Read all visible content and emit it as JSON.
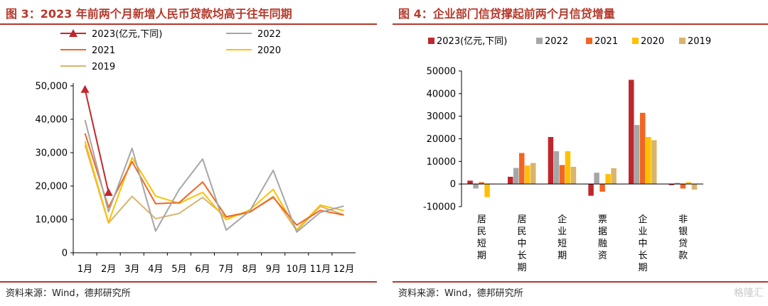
{
  "left": {
    "title": "图 3：2023 年前两个月新增人民币贷款均高于往年同期",
    "source": "资料来源：Wind，德邦研究所"
  },
  "right": {
    "title": "图 4：企业部门信贷撑起前两个月信贷增量",
    "source": "资料来源：Wind，德邦研究所"
  },
  "watermark": "格隆汇",
  "colors": {
    "accent": "#b5392b",
    "s2023": "#c0272d",
    "s2022": "#a6a6a6",
    "s2021": "#f26522",
    "s2020": "#ffc000",
    "s2019": "#d9b46c"
  },
  "chart_data": [
    {
      "type": "line",
      "categories": [
        "1月",
        "2月",
        "3月",
        "4月",
        "5月",
        "6月",
        "7月",
        "8月",
        "9月",
        "10月",
        "11月",
        "12月"
      ],
      "ylim": [
        0,
        50000
      ],
      "yticks": [
        "0",
        "10,000",
        "20,000",
        "30,000",
        "40,000",
        "50,000"
      ],
      "grid": false,
      "legend": "top",
      "series": [
        {
          "name": "2023(亿元,下同)",
          "color": "#c0272d",
          "marker": "triangle",
          "values": [
            49000,
            18100,
            null,
            null,
            null,
            null,
            null,
            null,
            null,
            null,
            null,
            null
          ]
        },
        {
          "name": "2022",
          "color": "#a6a6a6",
          "values": [
            39800,
            12300,
            31300,
            6500,
            18900,
            28100,
            6800,
            12500,
            24700,
            6200,
            12100,
            14000
          ]
        },
        {
          "name": "2021",
          "color": "#f26522",
          "values": [
            35800,
            13600,
            27300,
            14700,
            15000,
            21200,
            10800,
            12200,
            16600,
            8300,
            12700,
            11300
          ]
        },
        {
          "name": "2020",
          "color": "#ffc000",
          "values": [
            33400,
            9100,
            28500,
            17000,
            14800,
            18100,
            9900,
            12800,
            19000,
            6900,
            14300,
            12600
          ]
        },
        {
          "name": "2019",
          "color": "#d9b46c",
          "values": [
            32300,
            8900,
            16900,
            10200,
            11800,
            16600,
            10600,
            12100,
            16900,
            6600,
            13900,
            11400
          ]
        }
      ]
    },
    {
      "type": "bar",
      "categories": [
        "居民短期",
        "居民中长期",
        "企业短期",
        "票据融资",
        "企业中长期",
        "非银贷款"
      ],
      "ylim": [
        -10000,
        50000
      ],
      "yticks": [
        "-10000",
        "0",
        "10000",
        "20000",
        "30000",
        "40000",
        "50000"
      ],
      "grid": false,
      "legend": "top",
      "series": [
        {
          "name": "2023(亿元,下同)",
          "color": "#c0272d",
          "values": [
            1500,
            3200,
            20800,
            -5200,
            46100,
            -500
          ]
        },
        {
          "name": "2022",
          "color": "#a6a6a6",
          "values": [
            -2000,
            7100,
            14500,
            5000,
            26100,
            500
          ]
        },
        {
          "name": "2021",
          "color": "#f26522",
          "values": [
            800,
            13700,
            8400,
            -3400,
            31500,
            -2000
          ]
        },
        {
          "name": "2020",
          "color": "#ffc000",
          "values": [
            -5800,
            8200,
            14500,
            4400,
            20800,
            800
          ]
        },
        {
          "name": "2019",
          "color": "#d9b46c",
          "values": [
            100,
            9300,
            7600,
            7000,
            19400,
            -2500
          ]
        }
      ]
    }
  ]
}
